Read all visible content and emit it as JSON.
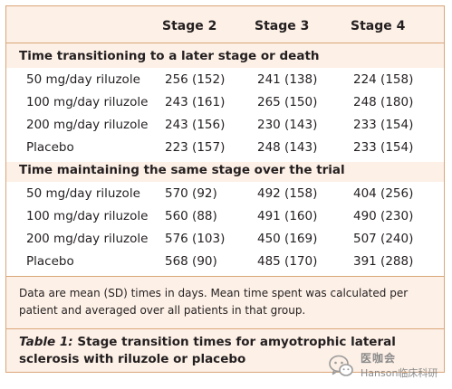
{
  "table": {
    "columns": [
      "",
      "Stage 2",
      "Stage 3",
      "Stage 4"
    ],
    "sections": [
      {
        "title": "Time transitioning to a later stage or death",
        "rows": [
          [
            "50 mg/day riluzole",
            "256 (152)",
            "241 (138)",
            "224 (158)"
          ],
          [
            "100 mg/day riluzole",
            "243 (161)",
            "265 (150)",
            "248 (180)"
          ],
          [
            "200 mg/day riluzole",
            "243 (156)",
            "230 (143)",
            "233 (154)"
          ],
          [
            "Placebo",
            "223 (157)",
            "248 (143)",
            "233 (154)"
          ]
        ]
      },
      {
        "title": "Time maintaining the same stage over the trial",
        "rows": [
          [
            "50 mg/day riluzole",
            "570 (92)",
            "492 (158)",
            "404 (256)"
          ],
          [
            "100 mg/day riluzole",
            "560 (88)",
            "491 (160)",
            "490 (230)"
          ],
          [
            "200 mg/day riluzole",
            "576 (103)",
            "450 (169)",
            "507 (240)"
          ],
          [
            "Placebo",
            "568 (90)",
            "485 (170)",
            "391 (288)"
          ]
        ]
      }
    ],
    "footnote": "Data are mean (SD) times in days. Mean time spent was calculated per patient and averaged over all patients in that group.",
    "caption_label": "Table 1:",
    "caption_text": " Stage transition times for amyotrophic lateral sclerosis with riluzole or placebo"
  },
  "watermark": {
    "main": "医咖会",
    "sub": "Hanson临床科研"
  },
  "colors": {
    "background": "#fdf0e6",
    "band": "#ffffff",
    "border": "#d9a67a",
    "text": "#231f20",
    "watermark": "#8a8a8a"
  },
  "icons": {
    "watermark_logo": "wechat-logo-icon"
  }
}
